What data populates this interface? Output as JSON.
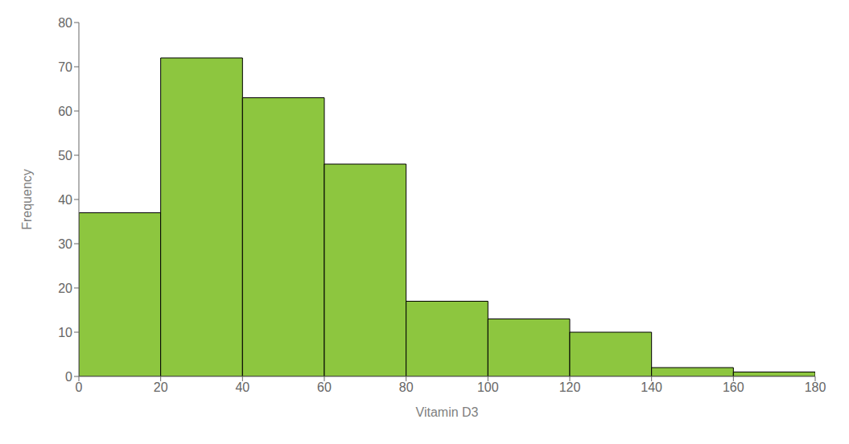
{
  "chart_data": {
    "type": "histogram",
    "bins": [
      0,
      20,
      40,
      60,
      80,
      100,
      120,
      140,
      160,
      180
    ],
    "values": [
      37,
      72,
      63,
      48,
      17,
      13,
      10,
      2,
      1
    ],
    "color": "#8DC63F",
    "xlabel": "Vitamin D3",
    "ylabel": "Frequency",
    "xlim": [
      0,
      180
    ],
    "ylim": [
      0,
      80
    ],
    "xticks": [
      0,
      20,
      40,
      60,
      80,
      100,
      120,
      140,
      160,
      180
    ],
    "yticks": [
      0,
      10,
      20,
      30,
      40,
      50,
      60,
      70,
      80
    ],
    "grid": false
  }
}
